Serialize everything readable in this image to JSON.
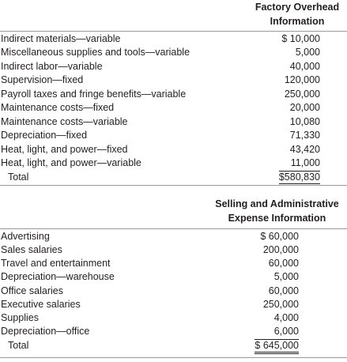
{
  "sections": [
    {
      "header": [
        "Factory Overhead",
        "Information"
      ],
      "rows": [
        [
          "Indirect materials—variable",
          "$ 10,000"
        ],
        [
          "Miscellaneous supplies and tools—variable",
          "5,000"
        ],
        [
          "Indirect labor—variable",
          "40,000"
        ],
        [
          "Supervision—fixed",
          "120,000"
        ],
        [
          "Payroll taxes and fringe benefits—variable",
          "250,000"
        ],
        [
          "Maintenance costs—fixed",
          "20,000"
        ],
        [
          "Maintenance costs—variable",
          "10,080"
        ],
        [
          "Depreciation—fixed",
          "71,330"
        ],
        [
          "Heat, light, and power—fixed",
          "43,420"
        ],
        [
          "Heat, light, and power—variable",
          "11,000"
        ]
      ],
      "total": [
        "Total",
        "$580,830"
      ]
    },
    {
      "header": [
        "Selling and Administrative",
        "Expense Information"
      ],
      "rows": [
        [
          "Advertising",
          "$ 60,000"
        ],
        [
          "Sales salaries",
          "200,000"
        ],
        [
          "Travel and entertainment",
          "60,000"
        ],
        [
          "Depreciation—warehouse",
          "5,000"
        ],
        [
          "Office salaries",
          "60,000"
        ],
        [
          "Executive salaries",
          "250,000"
        ],
        [
          "Supplies",
          "4,000"
        ],
        [
          "Depreciation—office",
          "6,000"
        ]
      ],
      "total": [
        "Total",
        "$ 645,000"
      ]
    }
  ]
}
